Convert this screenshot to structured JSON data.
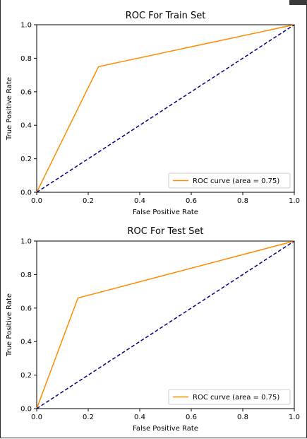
{
  "colors": {
    "roc_curve": "#ff8c00",
    "chance_line": "#000080",
    "axes": "#000000",
    "legend_border": "#cccccc"
  },
  "chart_data": [
    {
      "type": "line",
      "title": "ROC For Train Set",
      "xlabel": "False Positive Rate",
      "ylabel": "True Positive Rate",
      "xlim": [
        0.0,
        1.0
      ],
      "ylim": [
        0.0,
        1.0
      ],
      "xticks": [
        "0.0",
        "0.2",
        "0.4",
        "0.6",
        "0.8",
        "1.0"
      ],
      "yticks": [
        "0.0",
        "0.2",
        "0.4",
        "0.6",
        "0.8",
        "1.0"
      ],
      "grid": false,
      "legend_position": "lower-right",
      "series": [
        {
          "name": "ROC curve (area = 0.75)",
          "style": "solid",
          "x": [
            0.0,
            0.24,
            1.0
          ],
          "y": [
            0.0,
            0.75,
            1.0
          ]
        },
        {
          "style": "dashed",
          "x": [
            0.0,
            1.0
          ],
          "y": [
            0.0,
            1.0
          ]
        }
      ]
    },
    {
      "type": "line",
      "title": "ROC For Test Set",
      "xlabel": "False Positive Rate",
      "ylabel": "True Positive Rate",
      "xlim": [
        0.0,
        1.0
      ],
      "ylim": [
        0.0,
        1.0
      ],
      "xticks": [
        "0.0",
        "0.2",
        "0.4",
        "0.6",
        "0.8",
        "1.0"
      ],
      "yticks": [
        "0.0",
        "0.2",
        "0.4",
        "0.6",
        "0.8",
        "1.0"
      ],
      "grid": false,
      "legend_position": "lower-right",
      "series": [
        {
          "name": "ROC curve (area = 0.75)",
          "style": "solid",
          "x": [
            0.0,
            0.16,
            1.0
          ],
          "y": [
            0.0,
            0.66,
            1.0
          ]
        },
        {
          "style": "dashed",
          "x": [
            0.0,
            1.0
          ],
          "y": [
            0.0,
            1.0
          ]
        }
      ]
    }
  ]
}
